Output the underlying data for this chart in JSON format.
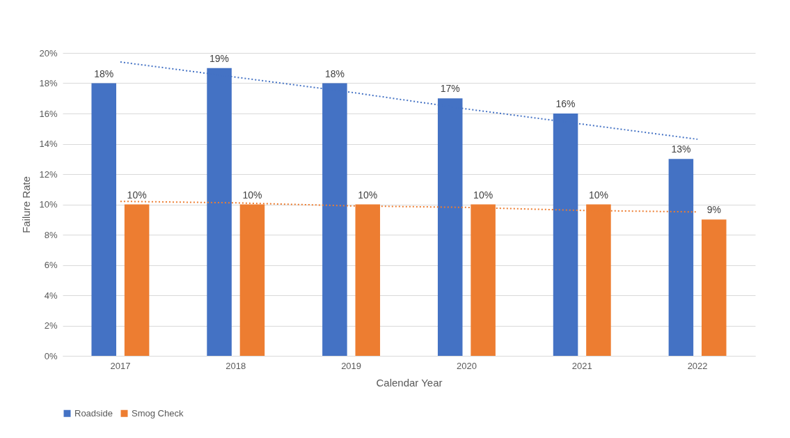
{
  "chart_data": {
    "type": "bar",
    "xlabel": "Calendar Year",
    "ylabel": "Failure Rate",
    "categories": [
      "2017",
      "2018",
      "2019",
      "2020",
      "2021",
      "2022"
    ],
    "series": [
      {
        "name": "Roadside",
        "color": "#4472c4",
        "values": [
          18,
          19,
          18,
          17,
          16,
          13
        ],
        "value_labels": [
          "18%",
          "19%",
          "18%",
          "17%",
          "16%",
          "13%"
        ]
      },
      {
        "name": "Smog Check",
        "color": "#ed7d31",
        "values": [
          10,
          10,
          10,
          10,
          10,
          9
        ],
        "value_labels": [
          "10%",
          "10%",
          "10%",
          "10%",
          "10%",
          "9%"
        ]
      },
      {
        "type": "line",
        "color": "#4472c4",
        "values": [
          19.4,
          18.4,
          17.4,
          16.3,
          15.3,
          14.3
        ],
        "line_style": "dotted",
        "marker": "none"
      },
      {
        "type": "line",
        "color": "#ed7d31",
        "values": [
          10.2,
          10.1,
          9.9,
          9.8,
          9.6,
          9.5
        ],
        "line_style": "dotted",
        "marker": "none"
      }
    ],
    "ylim": [
      0,
      20
    ],
    "yticks": [
      {
        "value": 0,
        "label": "0%"
      },
      {
        "value": 2,
        "label": "2%"
      },
      {
        "value": 4,
        "label": "4%"
      },
      {
        "value": 6,
        "label": "6%"
      },
      {
        "value": 8,
        "label": "8%"
      },
      {
        "value": 10,
        "label": "10%"
      },
      {
        "value": 12,
        "label": "12%"
      },
      {
        "value": 14,
        "label": "14%"
      },
      {
        "value": 16,
        "label": "16%"
      },
      {
        "value": 18,
        "label": "18%"
      },
      {
        "value": 20,
        "label": "20%"
      }
    ],
    "grid": "y",
    "legend": "bottom"
  }
}
